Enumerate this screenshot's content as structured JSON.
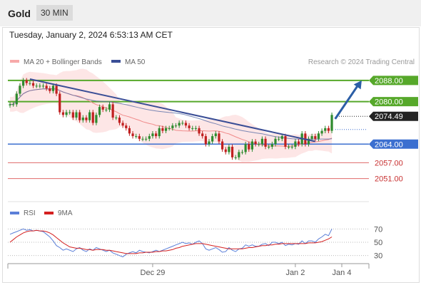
{
  "header": {
    "instrument": "Gold",
    "timeframe": "30 MIN",
    "datetime": "Tuesday, January 2, 2024 6:53:13 AM CET"
  },
  "legend": {
    "ma20": "MA 20 + Bollinger Bands",
    "ma50": "MA 50",
    "credit": "Research © 2024 Trading Central",
    "rsi": "RSI",
    "rsi9ma": "9MA"
  },
  "colors": {
    "bull": "#2e8b2e",
    "bear": "#c02020",
    "band": "#fde2e2",
    "ma20": "#f08a8a",
    "ma50": "#5a6fa8",
    "resistance": "#56a82a",
    "support": "#3b6fd0",
    "lowsupport": "#e06a6a",
    "trendline": "#3a4e96",
    "arrow": "#2b5ea6",
    "rsi": "#5b7fd8",
    "rsi9ma": "#d42020"
  },
  "chart_data": {
    "type": "candlestick",
    "instrument": "Gold",
    "interval": "30 MIN",
    "ylim": [
      2045,
      2092
    ],
    "xlabels": [
      {
        "label": "Dec 29",
        "index": 43
      },
      {
        "label": "Jan 2",
        "index": 86
      },
      {
        "label": "Jan 4",
        "index": 100
      }
    ],
    "levels": [
      {
        "value": 2088.0,
        "label": "2088.00",
        "kind": "resistance"
      },
      {
        "value": 2080.0,
        "label": "2080.00",
        "kind": "resistance"
      },
      {
        "value": 2074.49,
        "label": "2074.49",
        "kind": "last"
      },
      {
        "value": 2064.0,
        "label": "2064.00",
        "kind": "support"
      },
      {
        "value": 2057.0,
        "label": "2057.00",
        "kind": "lowsupport"
      },
      {
        "value": 2051.0,
        "label": "2051.00",
        "kind": "lowsupport"
      }
    ],
    "trendline": {
      "from": [
        6,
        2088.5
      ],
      "to": [
        92,
        2065.0
      ]
    },
    "projection": {
      "from": [
        98,
        2073.5
      ],
      "to": [
        106,
        2088.0
      ]
    },
    "close": [
      2079,
      2079,
      2083,
      2086,
      2088,
      2087,
      2087,
      2086,
      2086,
      2086,
      2086,
      2085,
      2084,
      2086,
      2083,
      2076,
      2075,
      2076,
      2076,
      2074,
      2076,
      2073,
      2074,
      2073,
      2076,
      2072,
      2075,
      2078,
      2077,
      2077,
      2079,
      2074,
      2074,
      2072,
      2071,
      2070,
      2068,
      2067,
      2067,
      2066,
      2066,
      2066,
      2067,
      2068,
      2067,
      2070,
      2069,
      2070,
      2070,
      2071,
      2071,
      2072,
      2072,
      2071,
      2070,
      2070,
      2070,
      2068,
      2067,
      2064,
      2065,
      2067,
      2068,
      2065,
      2062,
      2061,
      2063,
      2059,
      2059,
      2061,
      2061,
      2064,
      2062,
      2065,
      2064,
      2064,
      2066,
      2063,
      2063,
      2064,
      2066,
      2066,
      2067,
      2063,
      2063,
      2063,
      2065,
      2064,
      2068,
      2064,
      2066,
      2067,
      2066,
      2068,
      2069,
      2070,
      2069,
      2075
    ],
    "rsi": [
      62,
      64,
      66,
      68,
      70,
      68,
      69,
      67,
      68,
      67,
      66,
      62,
      58,
      52,
      45,
      42,
      38,
      40,
      38,
      36,
      40,
      42,
      38,
      36,
      40,
      38,
      42,
      40,
      38,
      36,
      38,
      34,
      32,
      30,
      28,
      32,
      34,
      36,
      34,
      38,
      36,
      35,
      34,
      36,
      38,
      36,
      38,
      40,
      42,
      44,
      46,
      48,
      50,
      48,
      49,
      47,
      50,
      52,
      48,
      40,
      38,
      40,
      42,
      39,
      35,
      36,
      42,
      38,
      36,
      40,
      41,
      46,
      44,
      46,
      44,
      44,
      47,
      48,
      45,
      50,
      50,
      48,
      50,
      45,
      47,
      46,
      48,
      47,
      52,
      48,
      52,
      52,
      50,
      55,
      58,
      62,
      60,
      70
    ],
    "rsi_9ma": [
      50,
      54,
      58,
      61,
      64,
      66,
      67,
      67,
      68,
      67,
      67,
      66,
      64,
      61,
      57,
      53,
      49,
      46,
      43,
      42,
      41,
      41,
      40,
      39,
      39,
      38,
      39,
      39,
      39,
      38,
      38,
      37,
      36,
      35,
      34,
      33,
      33,
      33,
      33,
      34,
      34,
      35,
      35,
      35,
      36,
      36,
      37,
      37,
      38,
      39,
      41,
      42,
      44,
      45,
      46,
      47,
      48,
      48,
      48,
      47,
      46,
      45,
      44,
      43,
      42,
      41,
      40,
      40,
      40,
      40,
      40,
      41,
      42,
      42,
      43,
      44,
      45,
      45,
      46,
      46,
      47,
      47,
      48,
      48,
      48,
      48,
      48,
      48,
      48,
      48,
      49,
      49,
      49,
      50,
      51,
      53,
      55,
      58
    ],
    "rsi_levels": [
      70,
      50,
      30
    ]
  }
}
